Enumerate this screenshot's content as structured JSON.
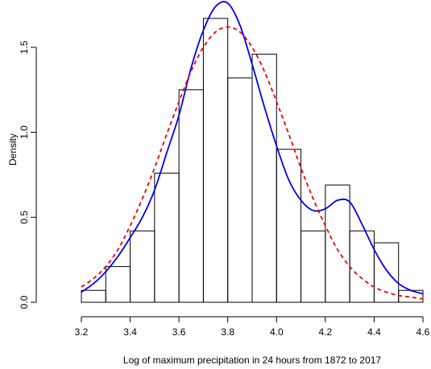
{
  "chart_data": {
    "type": "bar",
    "title": "",
    "xlabel": "Log of maximum precipitation in 24 hours from 1872 to 2017",
    "ylabel": "Density",
    "xlim": [
      3.2,
      4.6
    ],
    "ylim": [
      0,
      1.75
    ],
    "x_ticks": [
      "3.2",
      "3.4",
      "3.6",
      "3.8",
      "4.0",
      "4.2",
      "4.4",
      "4.6"
    ],
    "y_ticks": [
      "0.0",
      "0.5",
      "1.0",
      "1.5"
    ],
    "grid": false,
    "bin_edges": [
      3.2,
      3.3,
      3.4,
      3.5,
      3.6,
      3.7,
      3.8,
      3.9,
      4.0,
      4.1,
      4.2,
      4.3,
      4.4,
      4.5,
      4.6
    ],
    "values": [
      0.07,
      0.21,
      0.42,
      0.76,
      1.25,
      1.67,
      1.32,
      1.46,
      0.9,
      0.42,
      0.69,
      0.42,
      0.35,
      0.07
    ],
    "series": [
      {
        "style": "solid",
        "color": "#0000ee",
        "x": [
          3.2,
          3.25,
          3.3,
          3.35,
          3.4,
          3.45,
          3.5,
          3.55,
          3.6,
          3.65,
          3.7,
          3.75,
          3.8,
          3.85,
          3.9,
          3.95,
          4.0,
          4.05,
          4.1,
          4.15,
          4.2,
          4.25,
          4.3,
          4.35,
          4.4,
          4.45,
          4.5,
          4.55,
          4.6
        ],
        "y": [
          0.06,
          0.11,
          0.18,
          0.27,
          0.38,
          0.5,
          0.66,
          0.88,
          1.1,
          1.38,
          1.6,
          1.74,
          1.76,
          1.63,
          1.4,
          1.15,
          0.92,
          0.72,
          0.6,
          0.54,
          0.55,
          0.6,
          0.59,
          0.46,
          0.31,
          0.19,
          0.11,
          0.07,
          0.05
        ]
      },
      {
        "style": "dashed",
        "color": "#ee0000",
        "x": [
          3.2,
          3.25,
          3.3,
          3.35,
          3.4,
          3.45,
          3.5,
          3.55,
          3.6,
          3.65,
          3.7,
          3.75,
          3.8,
          3.85,
          3.9,
          3.95,
          4.0,
          4.05,
          4.1,
          4.15,
          4.2,
          4.25,
          4.3,
          4.35,
          4.4,
          4.45,
          4.5,
          4.55,
          4.6
        ],
        "y": [
          0.09,
          0.14,
          0.21,
          0.31,
          0.45,
          0.61,
          0.79,
          0.99,
          1.18,
          1.36,
          1.5,
          1.59,
          1.62,
          1.59,
          1.5,
          1.36,
          1.18,
          0.99,
          0.79,
          0.61,
          0.45,
          0.31,
          0.21,
          0.14,
          0.09,
          0.06,
          0.04,
          0.03,
          0.02
        ]
      }
    ]
  }
}
